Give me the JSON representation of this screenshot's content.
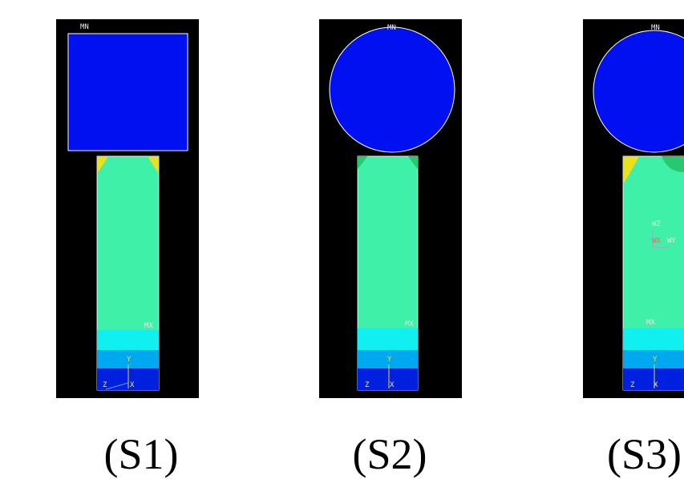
{
  "panels": [
    {
      "label": "(S1)",
      "min_label": "MN",
      "max_label": "MX",
      "axes": {
        "y": "Y",
        "z": "Z",
        "x": "X"
      }
    },
    {
      "label": "(S2)",
      "min_label": "MN",
      "max_label": "MX",
      "axes": {
        "y": "Y",
        "z": "Z",
        "x": "X"
      }
    },
    {
      "label": "(S3)",
      "min_label": "MN",
      "max_label": "MX",
      "axes": {
        "y": "Y",
        "z": "Z",
        "x": "X"
      },
      "workplane": {
        "z": "WZ",
        "x": "WX",
        "y": "WY"
      }
    }
  ]
}
